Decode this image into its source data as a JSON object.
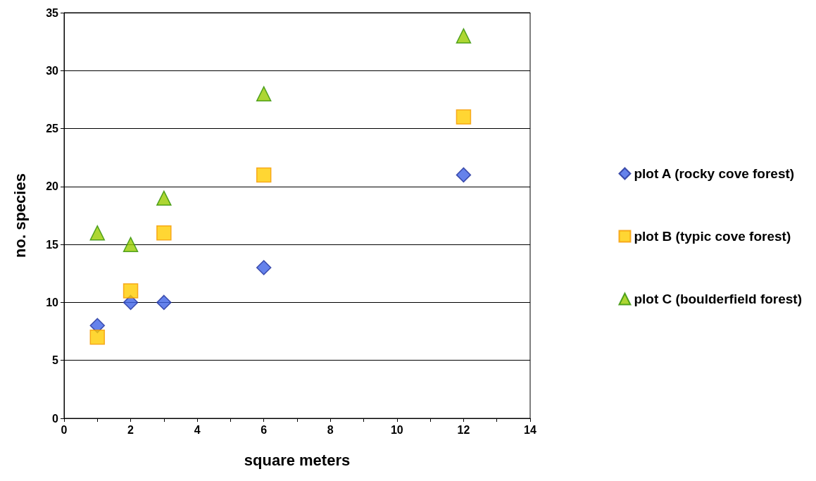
{
  "chart_data": {
    "type": "scatter",
    "xlabel": "square meters",
    "ylabel": "no. species",
    "xlim": [
      0,
      14
    ],
    "xticks": [
      0,
      {
        "value": 1,
        "label": null
      },
      2,
      {
        "value": 3,
        "label": null
      },
      4,
      {
        "value": 5,
        "label": null
      },
      6,
      {
        "value": 7,
        "label": null
      },
      8,
      {
        "value": 9,
        "label": null
      },
      10,
      {
        "value": 11,
        "label": null
      },
      12,
      {
        "value": 13,
        "label": null
      },
      14
    ],
    "ylim": [
      0,
      35
    ],
    "yticks": [
      0,
      5,
      10,
      15,
      20,
      25,
      30,
      35
    ],
    "grid": "y",
    "legend": "right",
    "series": [
      {
        "name": "plot A (rocky cove forest)",
        "color": "#3f63e6",
        "marker": "diamond",
        "x": [
          1,
          2,
          3,
          6,
          12
        ],
        "values": [
          8,
          10,
          10,
          13,
          21
        ]
      },
      {
        "name": "plot B (typic cove forest)",
        "color": "#ffcc00",
        "marker": "square",
        "x": [
          1,
          2,
          3,
          6,
          12
        ],
        "values": [
          7,
          11,
          16,
          21,
          26
        ]
      },
      {
        "name": "plot C (boulderfield forest)",
        "color": "#99cc00",
        "marker": "triangle",
        "x": [
          1,
          2,
          3,
          6,
          12
        ],
        "values": [
          16,
          15,
          19,
          28,
          33
        ]
      }
    ]
  }
}
